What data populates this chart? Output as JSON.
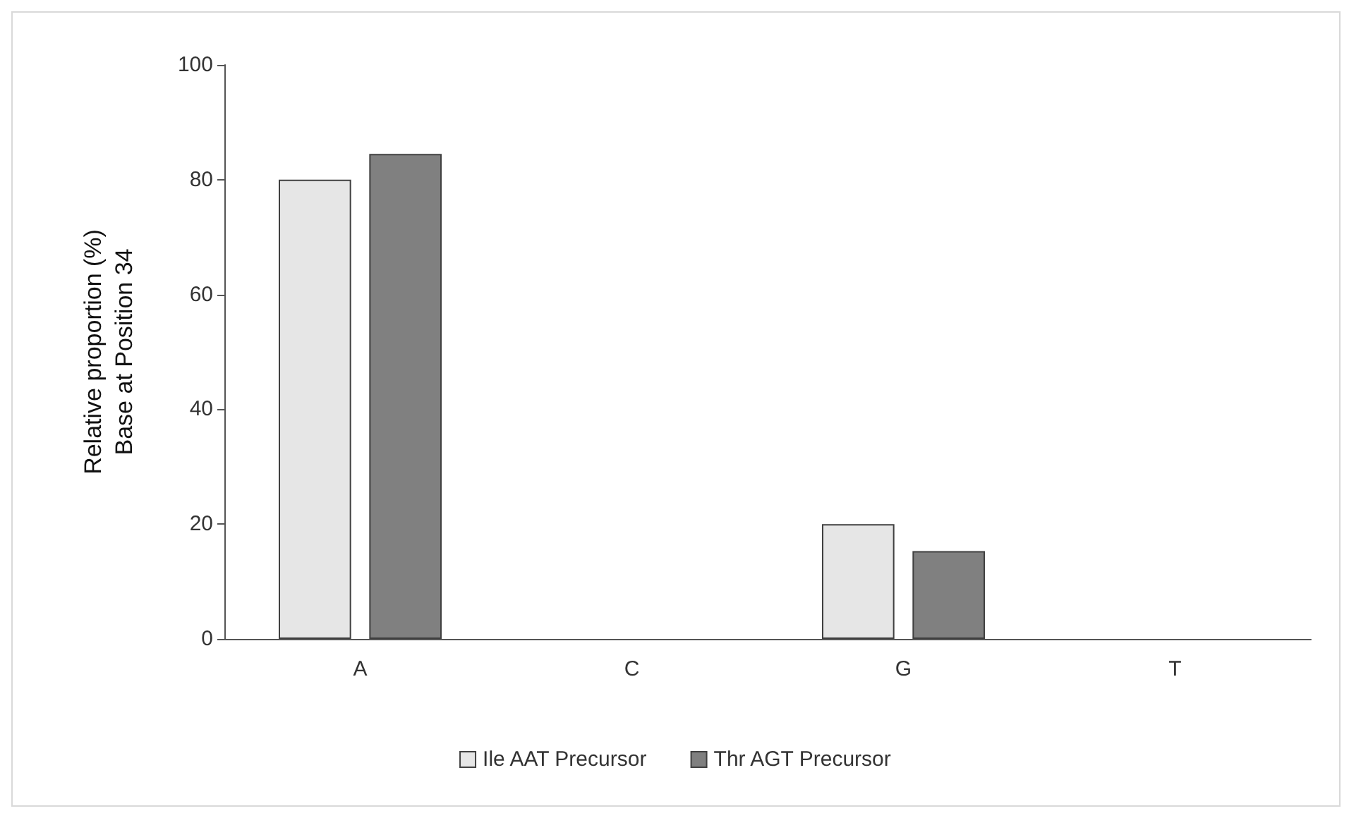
{
  "chart_data": {
    "type": "bar",
    "ylabel": "Relative proportion (%)\nBase at Position 34",
    "categories": [
      "A",
      "C",
      "G",
      "T"
    ],
    "series": [
      {
        "name": "Ile AAT Precursor",
        "color": "#e6e6e6",
        "values": [
          80,
          0,
          20,
          0
        ]
      },
      {
        "name": "Thr AGT Precursor",
        "color": "#808080",
        "values": [
          84.5,
          0,
          15.3,
          0
        ]
      }
    ],
    "ylim": [
      0,
      100
    ],
    "yticks": [
      0,
      20,
      40,
      60,
      80,
      100
    ],
    "grid": false,
    "legend": "bottom"
  }
}
